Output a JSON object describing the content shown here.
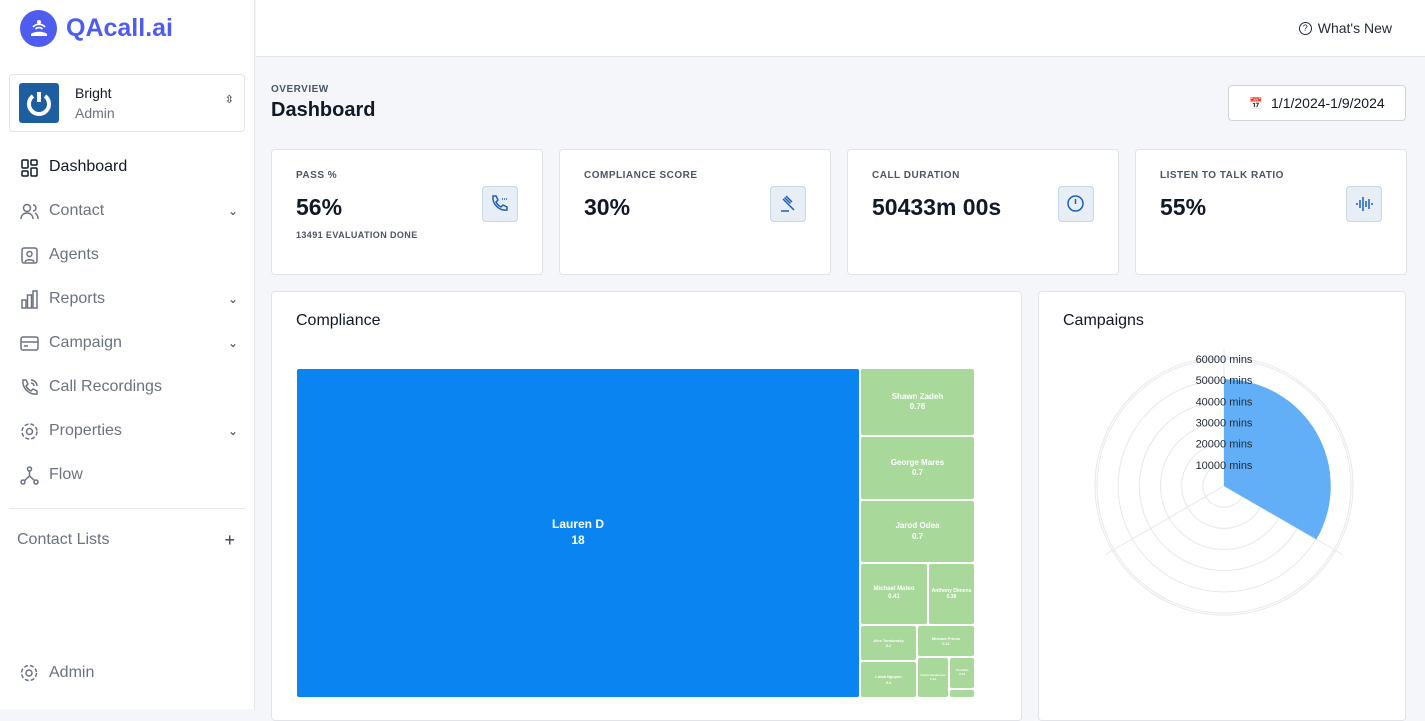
{
  "app": {
    "name": "QAcall.ai"
  },
  "org": {
    "name": "Bright",
    "role": "Admin"
  },
  "nav": [
    {
      "label": "Dashboard",
      "icon": "dashboard-icon",
      "active": true
    },
    {
      "label": "Contact",
      "icon": "users-icon",
      "chevron": true
    },
    {
      "label": "Agents",
      "icon": "agent-icon"
    },
    {
      "label": "Reports",
      "icon": "bar-chart-icon",
      "chevron": true
    },
    {
      "label": "Campaign",
      "icon": "card-icon",
      "chevron": true
    },
    {
      "label": "Call Recordings",
      "icon": "phone-icon"
    },
    {
      "label": "Properties",
      "icon": "gear-icon",
      "chevron": true
    },
    {
      "label": "Flow",
      "icon": "flow-icon"
    }
  ],
  "contact_lists": {
    "label": "Contact Lists",
    "add": "+"
  },
  "admin": {
    "label": "Admin"
  },
  "topbar": {
    "whats_new": "What's New"
  },
  "header": {
    "overline": "OVERVIEW",
    "title": "Dashboard",
    "date_range": "1/1/2024-1/9/2024"
  },
  "cards": [
    {
      "label": "PASS %",
      "value": "56%",
      "sub": "13491 EVALUATION DONE",
      "icon": "phone-call-icon"
    },
    {
      "label": "COMPLIANCE SCORE",
      "value": "30%",
      "icon": "gavel-icon"
    },
    {
      "label": "CALL DURATION",
      "value": "50433m 00s",
      "icon": "clock-icon"
    },
    {
      "label": "LISTEN TO TALK RATIO",
      "value": "55%",
      "icon": "audio-wave-icon"
    }
  ],
  "chart_data": [
    {
      "type": "treemap",
      "title": "Compliance",
      "colors": {
        "top": "#0a84f0",
        "rest": "#a8d89a"
      },
      "items": [
        {
          "name": "Lauren D",
          "value": 18
        },
        {
          "name": "Shawn Zadeh",
          "value": 0.76
        },
        {
          "name": "George Mares",
          "value": 0.7
        },
        {
          "name": "Jarod Odea",
          "value": 0.7
        },
        {
          "name": "Michael Mateo",
          "value": 0.41
        },
        {
          "name": "Anthony Dimens",
          "value": 0.38
        },
        {
          "name": "Alex Tendonsky",
          "value": 0.2
        },
        {
          "name": "Michael Prinos",
          "value": 0.11
        },
        {
          "name": "Linda Nguyen",
          "value": 0.2
        },
        {
          "name": "Kevin Henderson",
          "value": 0.13
        },
        {
          "name": "Tom Ellis",
          "value": 0.04
        },
        {
          "name": "",
          "value": 0.01
        }
      ]
    },
    {
      "type": "polarArea",
      "title": "Campaigns",
      "color": "#5aabf7",
      "unit": "mins",
      "rlim": [
        0,
        60000
      ],
      "ticks": [
        "10000 mins",
        "20000 mins",
        "30000 mins",
        "40000 mins",
        "50000 mins",
        "60000 mins"
      ],
      "values": [
        50433,
        0,
        0
      ]
    }
  ]
}
